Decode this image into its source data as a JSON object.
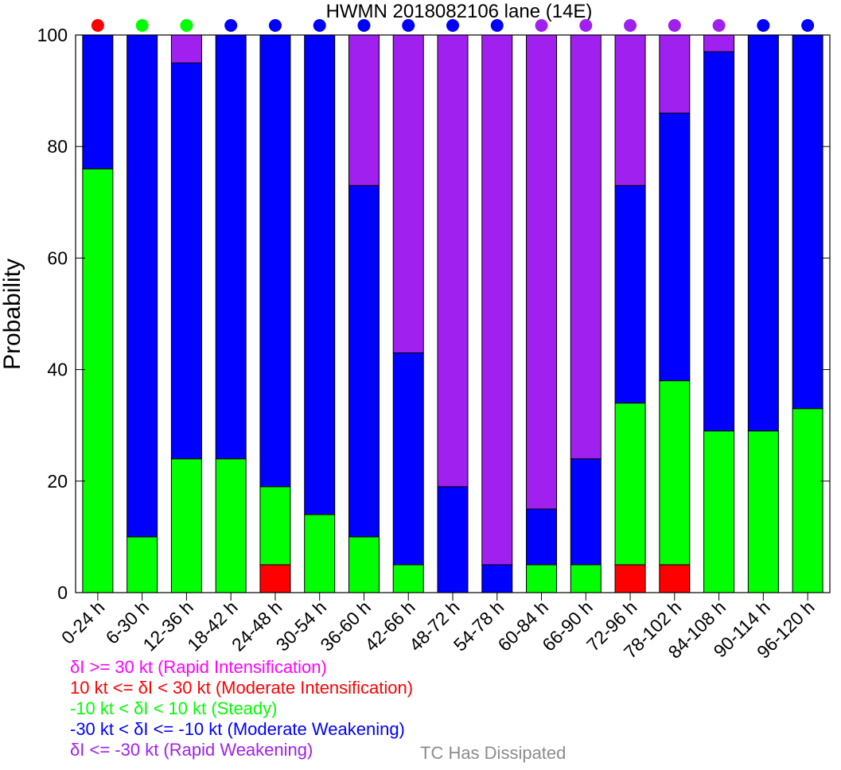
{
  "chart_data": {
    "type": "bar",
    "stacked": true,
    "title": "HWMN 2018082106 lane (14E)",
    "ylabel": "Probability",
    "ylim": [
      0,
      100
    ],
    "yticks": [
      0,
      20,
      40,
      60,
      80,
      100
    ],
    "categories": [
      "0-24 h",
      "6-30 h",
      "12-36 h",
      "18-42 h",
      "24-48 h",
      "30-54 h",
      "36-60 h",
      "42-66 h",
      "48-72 h",
      "54-78 h",
      "60-84 h",
      "66-90 h",
      "72-96 h",
      "78-102 h",
      "84-108 h",
      "90-114 h",
      "96-120 h"
    ],
    "series": [
      {
        "name": "Moderate Intensification",
        "color": "#ff0000",
        "values": [
          0,
          0,
          0,
          0,
          5,
          0,
          0,
          0,
          0,
          0,
          0,
          0,
          5,
          5,
          0,
          0,
          0
        ]
      },
      {
        "name": "Steady",
        "color": "#00ff00",
        "values": [
          76,
          10,
          24,
          24,
          14,
          14,
          10,
          5,
          0,
          0,
          5,
          5,
          29,
          33,
          29,
          29,
          33
        ]
      },
      {
        "name": "Moderate Weakening",
        "color": "#0000ff",
        "values": [
          24,
          90,
          71,
          76,
          81,
          86,
          63,
          38,
          19,
          5,
          10,
          19,
          39,
          48,
          68,
          71,
          67
        ]
      },
      {
        "name": "Rapid Weakening",
        "color": "#a020f0",
        "values": [
          0,
          0,
          5,
          0,
          0,
          0,
          27,
          57,
          81,
          95,
          85,
          76,
          27,
          14,
          3,
          0,
          0
        ]
      }
    ],
    "top_markers": [
      "#ff0000",
      "#00ff00",
      "#00ff00",
      "#0000ff",
      "#0000ff",
      "#0000ff",
      "#0000ff",
      "#0000ff",
      "#0000ff",
      "#0000ff",
      "#a020f0",
      "#a020f0",
      "#a020f0",
      "#a020f0",
      "#a020f0",
      "#0000ff",
      "#0000ff"
    ],
    "legend": [
      {
        "text": "δI >= 30 kt (Rapid Intensification)",
        "color": "#ff00ff"
      },
      {
        "text": "10 kt <= δI < 30 kt (Moderate Intensification)",
        "color": "#ff0000"
      },
      {
        "text": "-10 kt < δI < 10 kt (Steady)",
        "color": "#00ff00"
      },
      {
        "text": "-30 kt < δI <= -10 kt (Moderate Weakening)",
        "color": "#0000ff"
      },
      {
        "text": "δI <= -30 kt (Rapid Weakening)",
        "color": "#a020f0"
      }
    ],
    "dissipated_label": "TC Has Dissipated",
    "dissipated_color": "#8c8c8c"
  }
}
